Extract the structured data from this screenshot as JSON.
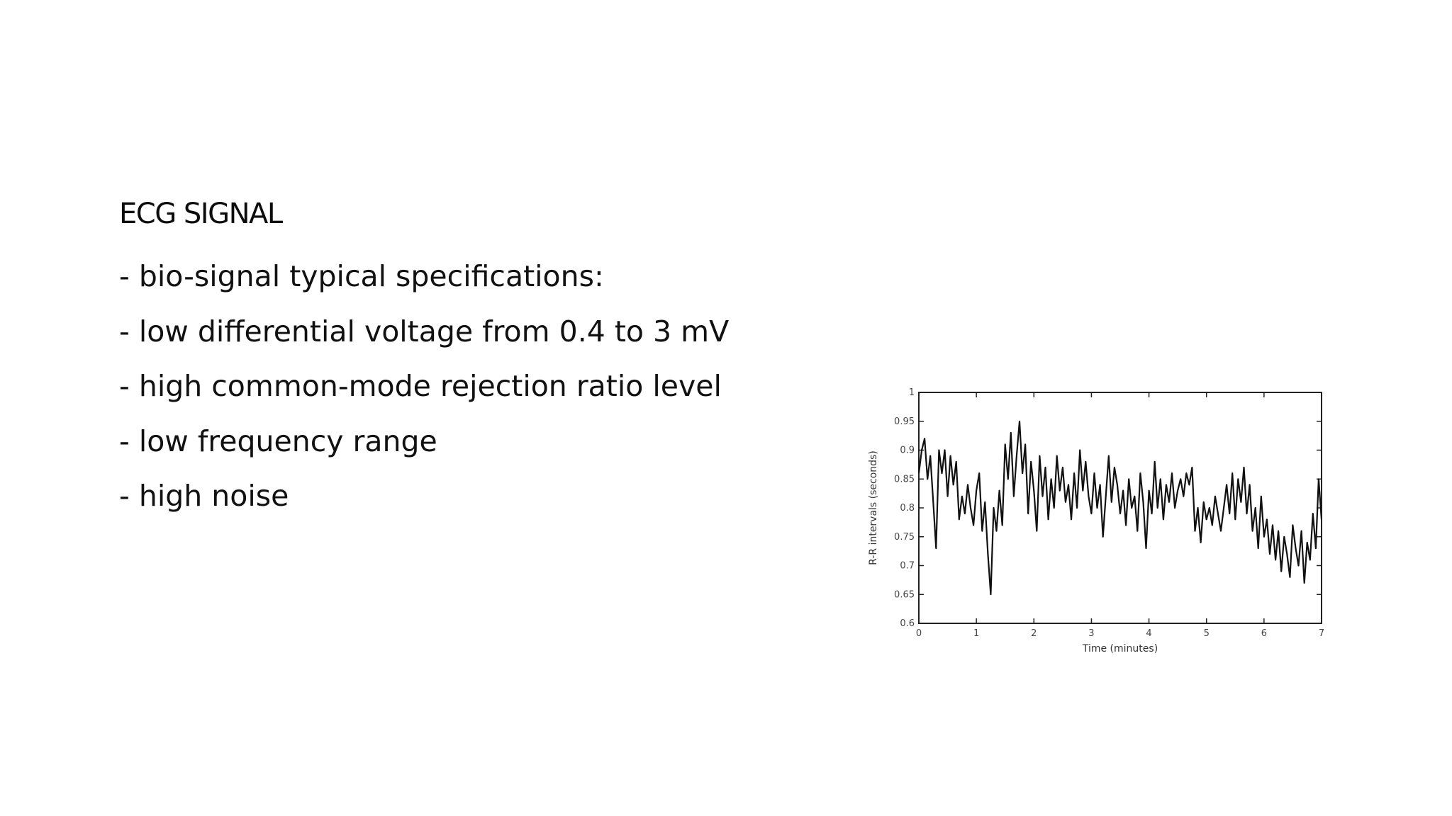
{
  "slide": {
    "title": "ECG SIGNAL",
    "bullets": [
      "- bio-signal typical specifications:",
      "- low differential voltage from 0.4 to 3 mV",
      "- high common-mode rejection ratio level",
      "- low frequency range",
      "- high noise"
    ]
  },
  "chart_data": {
    "type": "line",
    "title": "",
    "xlabel": "Time (minutes)",
    "ylabel": "R-R intervals (seconds)",
    "xlim": [
      0,
      7
    ],
    "ylim": [
      0.6,
      1
    ],
    "x_ticks": [
      "0",
      "1",
      "2",
      "3",
      "4",
      "5",
      "6",
      "7"
    ],
    "y_ticks": [
      "0.6",
      "0.65",
      "0.7",
      "0.75",
      "0.8",
      "0.85",
      "0.9",
      "0.95",
      "1"
    ],
    "grid": false,
    "line_color": "#111111",
    "series": [
      {
        "x": [
          0,
          0.05,
          0.1,
          0.15,
          0.2,
          0.25,
          0.3,
          0.35,
          0.4,
          0.45,
          0.5,
          0.55,
          0.6,
          0.65,
          0.7,
          0.75,
          0.8,
          0.85,
          0.9,
          0.95,
          1,
          1.05,
          1.1,
          1.15,
          1.2,
          1.25,
          1.3,
          1.35,
          1.4,
          1.45,
          1.5,
          1.55,
          1.6,
          1.65,
          1.7,
          1.75,
          1.8,
          1.85,
          1.9,
          1.95,
          2,
          2.05,
          2.1,
          2.15,
          2.2,
          2.25,
          2.3,
          2.35,
          2.4,
          2.45,
          2.5,
          2.55,
          2.6,
          2.65,
          2.7,
          2.75,
          2.8,
          2.85,
          2.9,
          2.95,
          3,
          3.05,
          3.1,
          3.15,
          3.2,
          3.25,
          3.3,
          3.35,
          3.4,
          3.45,
          3.5,
          3.55,
          3.6,
          3.65,
          3.7,
          3.75,
          3.8,
          3.85,
          3.9,
          3.95,
          4,
          4.05,
          4.1,
          4.15,
          4.2,
          4.25,
          4.3,
          4.35,
          4.4,
          4.45,
          4.5,
          4.55,
          4.6,
          4.65,
          4.7,
          4.75,
          4.8,
          4.85,
          4.9,
          4.95,
          5,
          5.05,
          5.1,
          5.15,
          5.2,
          5.25,
          5.3,
          5.35,
          5.4,
          5.45,
          5.5,
          5.55,
          5.6,
          5.65,
          5.7,
          5.75,
          5.8,
          5.85,
          5.9,
          5.95,
          6,
          6.05,
          6.1,
          6.15,
          6.2,
          6.25,
          6.3,
          6.35,
          6.4,
          6.45,
          6.5,
          6.55,
          6.6,
          6.65,
          6.7,
          6.75,
          6.8,
          6.85,
          6.9,
          6.95,
          7
        ],
        "y": [
          0.86,
          0.9,
          0.92,
          0.85,
          0.89,
          0.81,
          0.73,
          0.9,
          0.86,
          0.9,
          0.82,
          0.89,
          0.84,
          0.88,
          0.78,
          0.82,
          0.79,
          0.84,
          0.8,
          0.77,
          0.83,
          0.86,
          0.76,
          0.81,
          0.72,
          0.65,
          0.8,
          0.76,
          0.83,
          0.77,
          0.91,
          0.85,
          0.93,
          0.82,
          0.89,
          0.95,
          0.86,
          0.91,
          0.79,
          0.88,
          0.83,
          0.76,
          0.89,
          0.82,
          0.87,
          0.78,
          0.85,
          0.8,
          0.89,
          0.83,
          0.87,
          0.81,
          0.84,
          0.78,
          0.86,
          0.8,
          0.9,
          0.83,
          0.88,
          0.82,
          0.79,
          0.86,
          0.8,
          0.84,
          0.75,
          0.82,
          0.89,
          0.81,
          0.87,
          0.84,
          0.79,
          0.83,
          0.77,
          0.85,
          0.8,
          0.82,
          0.76,
          0.86,
          0.81,
          0.73,
          0.83,
          0.79,
          0.88,
          0.8,
          0.85,
          0.78,
          0.84,
          0.81,
          0.86,
          0.8,
          0.83,
          0.85,
          0.82,
          0.86,
          0.84,
          0.87,
          0.76,
          0.8,
          0.74,
          0.81,
          0.78,
          0.8,
          0.77,
          0.82,
          0.79,
          0.76,
          0.8,
          0.84,
          0.79,
          0.86,
          0.78,
          0.85,
          0.81,
          0.87,
          0.79,
          0.84,
          0.76,
          0.8,
          0.73,
          0.82,
          0.75,
          0.78,
          0.72,
          0.77,
          0.71,
          0.76,
          0.69,
          0.75,
          0.72,
          0.68,
          0.77,
          0.73,
          0.7,
          0.76,
          0.67,
          0.74,
          0.71,
          0.79,
          0.73,
          0.85,
          0.78
        ]
      }
    ]
  }
}
